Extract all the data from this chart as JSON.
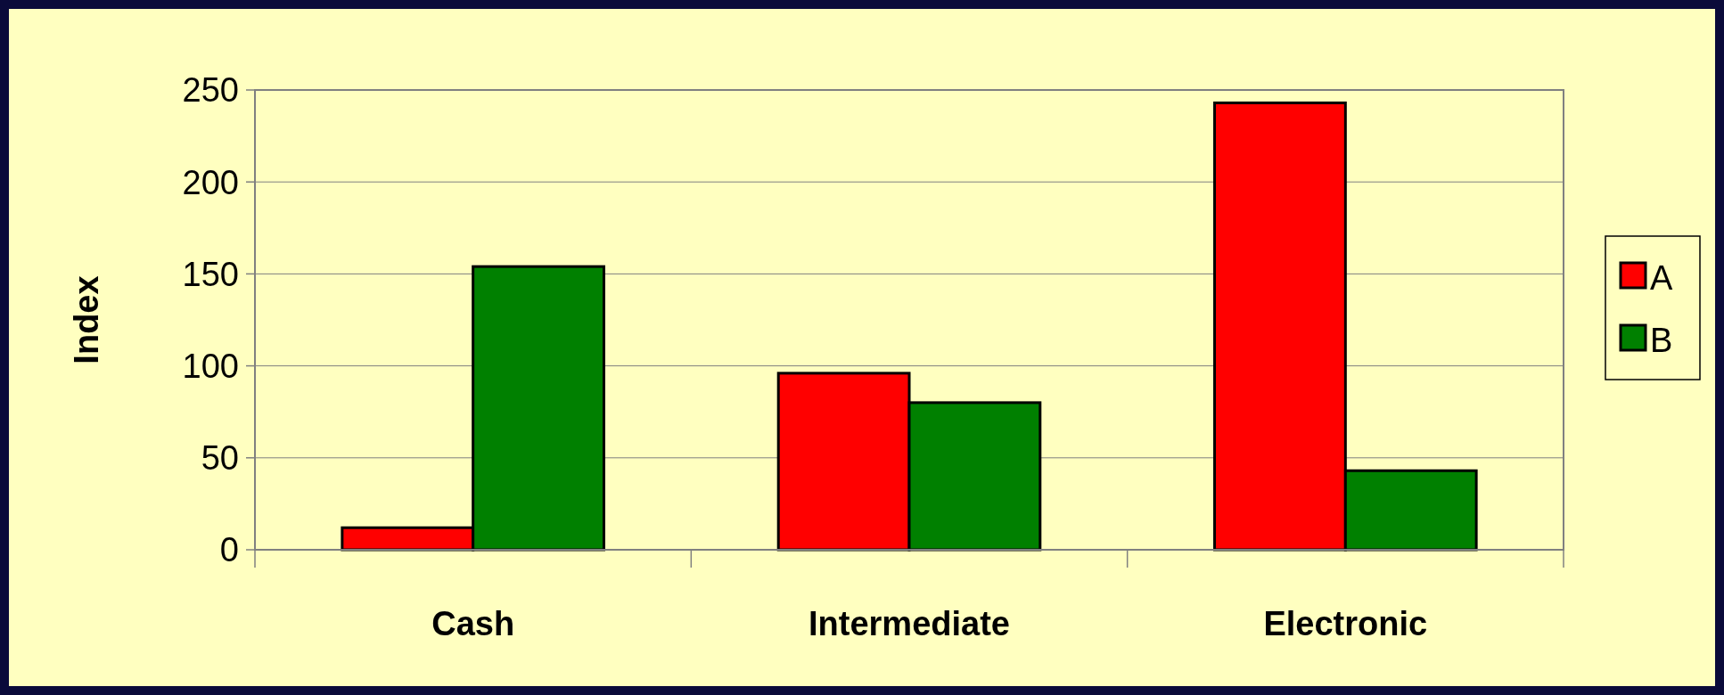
{
  "chart_data": {
    "type": "bar",
    "ylabel": "Index",
    "categories": [
      "Cash",
      "Intermediate",
      "Electronic"
    ],
    "series": [
      {
        "name": "A",
        "color": "#ff0000",
        "values": [
          12,
          96,
          243
        ]
      },
      {
        "name": "B",
        "color": "#008000",
        "values": [
          154,
          80,
          43
        ]
      }
    ],
    "ylim": [
      0,
      250
    ],
    "yticks": [
      0,
      50,
      100,
      150,
      200,
      250
    ],
    "grid": "y",
    "legend": "right"
  }
}
